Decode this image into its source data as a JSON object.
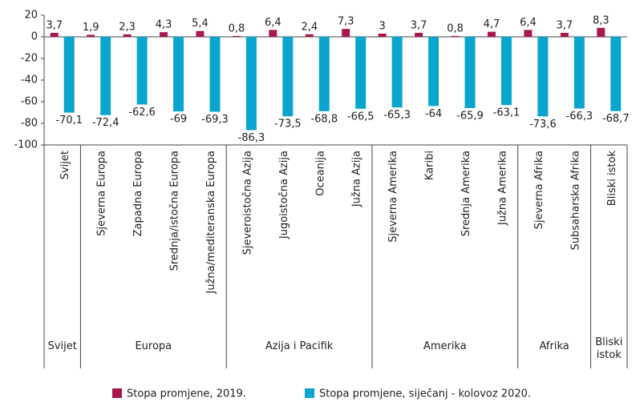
{
  "chart_data": {
    "type": "bar",
    "groups": [
      {
        "name": "Svijet",
        "categories": [
          "Svijet"
        ]
      },
      {
        "name": "Europa",
        "categories": [
          "Sjeverna Europa",
          "Zapadna Europa",
          "Srednja/istočna Europa",
          "Južna/mediteranska Europa"
        ]
      },
      {
        "name": "Azija i Pacifik",
        "categories": [
          "Sjeveroistočna Azija",
          "Jugoistočna Azija",
          "Oceanija",
          "Južna Azija"
        ]
      },
      {
        "name": "Amerika",
        "categories": [
          "Sjeverna Amerika",
          "Karibi",
          "Srednja Amerika",
          "Južna Amerika"
        ]
      },
      {
        "name": "Afrika",
        "categories": [
          "Sjeverna Afrika",
          "Subsaharska Afrika"
        ]
      },
      {
        "name": "Bliski istok",
        "categories": [
          "Bliski istok"
        ]
      }
    ],
    "series": [
      {
        "name": "Stopa promjene, 2019.",
        "color": "#a8174f",
        "values": [
          3.7,
          1.9,
          2.3,
          4.3,
          5.4,
          0.8,
          6.4,
          2.4,
          7.3,
          3,
          3.7,
          0.8,
          4.7,
          6.4,
          3.7,
          8.3
        ],
        "value_labels": [
          "3,7",
          "1,9",
          "2,3",
          "4,3",
          "5,4",
          "0,8",
          "6,4",
          "2,4",
          "7,3",
          "3",
          "3,7",
          "0,8",
          "4,7",
          "6,4",
          "3,7",
          "8,3"
        ]
      },
      {
        "name": "Stopa promjene, siječanj - kolovoz 2020.",
        "color": "#0aa5cf",
        "values": [
          -70.1,
          -72.4,
          -62.6,
          -69,
          -69.3,
          -86.3,
          -73.5,
          -68.8,
          -66.5,
          -65.3,
          -64,
          -65.9,
          -63.1,
          -73.6,
          -66.3,
          -68.7
        ],
        "value_labels": [
          "-70,1",
          "-72,4",
          "-62,6",
          "-69",
          "-69,3",
          "-86,3",
          "-73,5",
          "-68,8",
          "-66,5",
          "-65,3",
          "-64",
          "-65,9",
          "-63,1",
          "-73,6",
          "-66,3",
          "-68,7"
        ]
      }
    ],
    "ylim": [
      -100,
      20
    ],
    "yticks": [
      20,
      0,
      -20,
      -40,
      -60,
      -80,
      -100
    ]
  }
}
